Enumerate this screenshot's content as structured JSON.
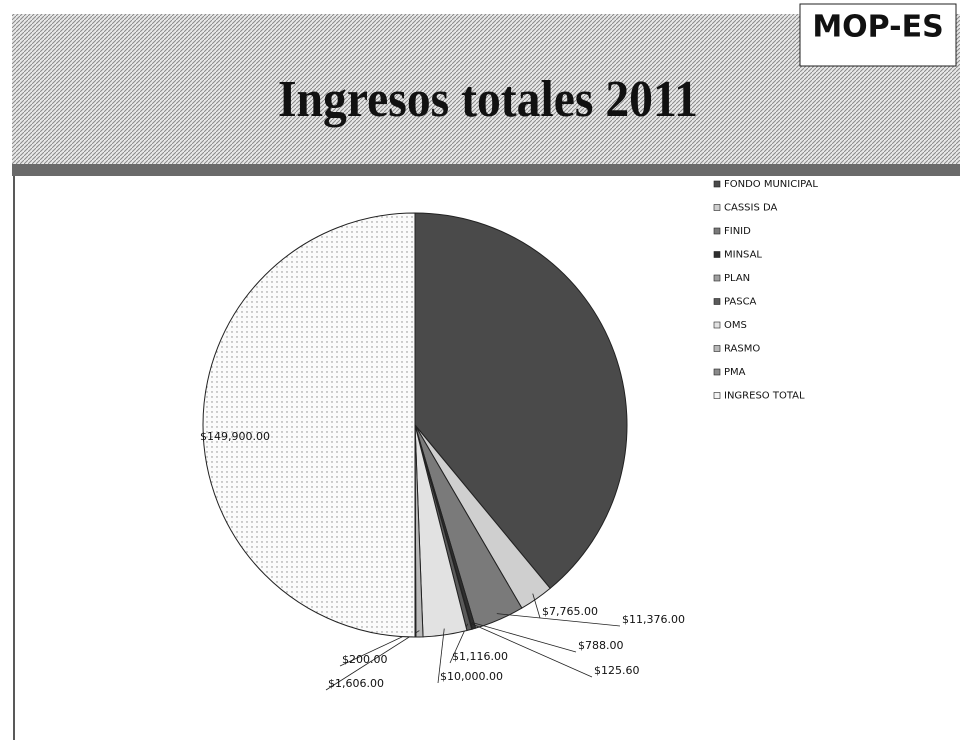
{
  "chart_data": {
    "type": "pie",
    "title": "Ingresos totales 2011",
    "logo": "MOP-ES",
    "categories": [
      "FONDO MUNICIPAL",
      "CASSIS DA",
      "FINID",
      "MINSAL",
      "PLAN",
      "PASCA",
      "OMS",
      "RASMO",
      "PMA",
      "INGRESO TOTAL"
    ],
    "values": [
      116923.4,
      7765,
      11376,
      788,
      125.6,
      1116,
      10000,
      1606,
      200,
      149900
    ],
    "value_labels": [
      null,
      "$7,765.00",
      "$11,376.00",
      "$788.00",
      "$125.60",
      "$1,116.00",
      "$10,000.00",
      "$1,606.00",
      "$200.00",
      "$149,900.00"
    ],
    "colors": [
      "#4a4a4a",
      "#cfcfcf",
      "#7a7a7a",
      "#2e2e2e",
      "#a0a0a0",
      "#5a5a5a",
      "#e2e2e2",
      "#b8b8b8",
      "#8a8a8a",
      "#f3f3f3"
    ],
    "legend": "right"
  }
}
